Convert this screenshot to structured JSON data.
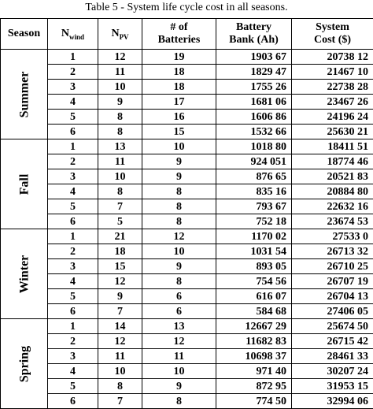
{
  "caption": "Table 5 - System life cycle cost in all seasons.",
  "headers": {
    "season": "Season",
    "nwind_main": "N",
    "nwind_sub": "wind",
    "npv_main": "N",
    "npv_sub": "PV",
    "batteries_l1": "# of",
    "batteries_l2": "Batteries",
    "bank_l1": "Battery",
    "bank_l2": "Bank (Ah)",
    "cost_l1": "System",
    "cost_l2": "Cost ($)"
  },
  "seasons": [
    {
      "name": "Summer",
      "rows": [
        {
          "n": "1",
          "npv": "12",
          "bat": "19",
          "bank": "1903 67",
          "cost": "20738 12"
        },
        {
          "n": "2",
          "npv": "11",
          "bat": "18",
          "bank": "1829 47",
          "cost": "21467 10"
        },
        {
          "n": "3",
          "npv": "10",
          "bat": "18",
          "bank": "1755 26",
          "cost": "22738 28"
        },
        {
          "n": "4",
          "npv": "9",
          "bat": "17",
          "bank": "1681 06",
          "cost": "23467 26"
        },
        {
          "n": "5",
          "npv": "8",
          "bat": "16",
          "bank": "1606 86",
          "cost": "24196 24"
        },
        {
          "n": "6",
          "npv": "8",
          "bat": "15",
          "bank": "1532 66",
          "cost": "25630 21"
        }
      ]
    },
    {
      "name": "Fall",
      "rows": [
        {
          "n": "1",
          "npv": "13",
          "bat": "10",
          "bank": "1018 80",
          "cost": "18411 51"
        },
        {
          "n": "2",
          "npv": "11",
          "bat": "9",
          "bank": "924 051",
          "cost": "18774 46"
        },
        {
          "n": "3",
          "npv": "10",
          "bat": "9",
          "bank": "876 65",
          "cost": "20521 83"
        },
        {
          "n": "4",
          "npv": "8",
          "bat": "8",
          "bank": "835 16",
          "cost": "20884 80"
        },
        {
          "n": "5",
          "npv": "7",
          "bat": "8",
          "bank": "793 67",
          "cost": "22632 16"
        },
        {
          "n": "6",
          "npv": "5",
          "bat": "8",
          "bank": "752 18",
          "cost": "23674 53"
        }
      ]
    },
    {
      "name": "Winter",
      "rows": [
        {
          "n": "1",
          "npv": "21",
          "bat": "12",
          "bank": "1170 02",
          "cost": "27533 0"
        },
        {
          "n": "2",
          "npv": "18",
          "bat": "10",
          "bank": "1031 54",
          "cost": "26713 32"
        },
        {
          "n": "3",
          "npv": "15",
          "bat": "9",
          "bank": "893 05",
          "cost": "26710 25"
        },
        {
          "n": "4",
          "npv": "12",
          "bat": "8",
          "bank": "754 56",
          "cost": "26707 19"
        },
        {
          "n": "5",
          "npv": "9",
          "bat": "6",
          "bank": "616 07",
          "cost": "26704 13"
        },
        {
          "n": "6",
          "npv": "7",
          "bat": "6",
          "bank": "584 68",
          "cost": "27406 05"
        }
      ]
    },
    {
      "name": "Spring",
      "rows": [
        {
          "n": "1",
          "npv": "14",
          "bat": "13",
          "bank": "12667 29",
          "cost": "25674 50"
        },
        {
          "n": "2",
          "npv": "12",
          "bat": "12",
          "bank": "11682 83",
          "cost": "26715 42"
        },
        {
          "n": "3",
          "npv": "11",
          "bat": "11",
          "bank": "10698 37",
          "cost": "28461 33"
        },
        {
          "n": "4",
          "npv": "10",
          "bat": "10",
          "bank": "971 40",
          "cost": "30207 24"
        },
        {
          "n": "5",
          "npv": "8",
          "bat": "9",
          "bank": "872 95",
          "cost": "31953 15"
        },
        {
          "n": "6",
          "npv": "7",
          "bat": "8",
          "bank": "774 50",
          "cost": "32994 06"
        }
      ]
    }
  ]
}
